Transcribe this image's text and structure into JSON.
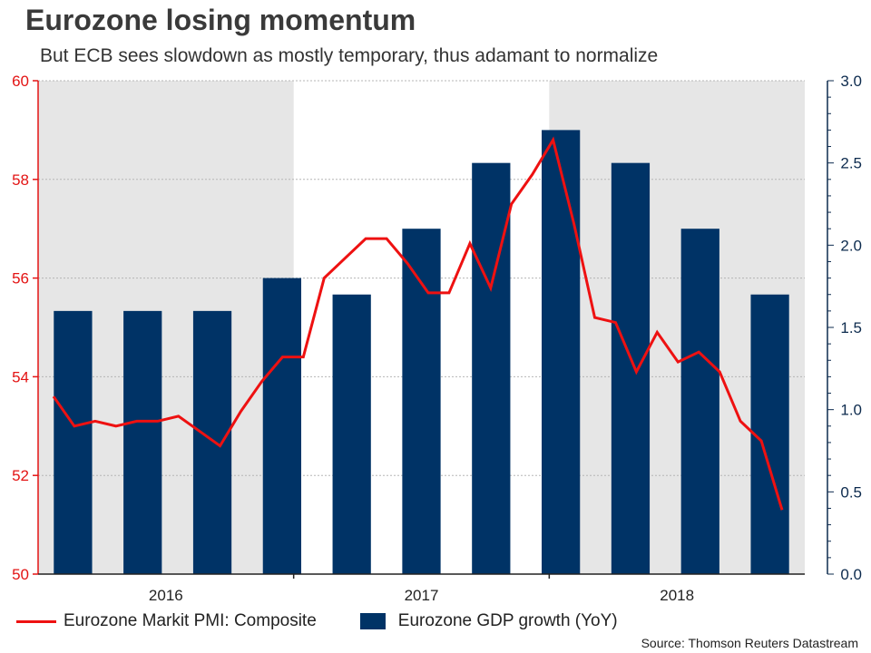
{
  "title": "Eurozone losing momentum",
  "subtitle": "But ECB sees slowdown as mostly temporary, thus adamant to normalize",
  "source": "Source: Thomson Reuters Datastream",
  "colors": {
    "pmi_line": "#ee1111",
    "gdp_bar": "#003366",
    "left_axis": "#e31414",
    "right_axis": "#0d2b4e",
    "shade": "#e6e6e6",
    "grid": "#b5b5b5"
  },
  "chart_data": {
    "type": "bar+line",
    "x_labels": [
      "2016",
      "2017",
      "2018"
    ],
    "left_axis": {
      "ylim": [
        50,
        60
      ],
      "ticks": [
        "50",
        "52",
        "54",
        "56",
        "58",
        "60"
      ]
    },
    "right_axis": {
      "ylim": [
        0,
        3
      ],
      "ticks": [
        "0.0",
        "0.5",
        "1.0",
        "1.5",
        "2.0",
        "2.5",
        "3.0"
      ]
    },
    "series": [
      {
        "name": "Eurozone Markit PMI: Composite",
        "type": "line",
        "axis": "left",
        "values": [
          53.6,
          53.0,
          53.1,
          53.0,
          53.1,
          53.1,
          53.2,
          52.9,
          52.6,
          53.3,
          53.9,
          54.4,
          54.4,
          56.0,
          56.4,
          56.8,
          56.8,
          56.3,
          55.7,
          55.7,
          56.7,
          55.8,
          57.5,
          58.1,
          58.8,
          57.1,
          55.2,
          55.1,
          54.1,
          54.9,
          54.3,
          54.5,
          54.1,
          53.1,
          52.7,
          51.3
        ]
      },
      {
        "name": "Eurozone GDP growth (YoY)",
        "type": "bar",
        "axis": "right",
        "values": [
          1.6,
          1.6,
          1.6,
          1.8,
          1.7,
          2.1,
          2.5,
          2.7,
          2.5,
          2.1,
          1.7
        ]
      }
    ],
    "legend_position": "bottom-left"
  }
}
